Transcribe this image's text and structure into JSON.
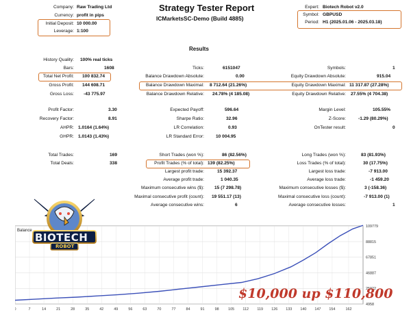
{
  "header": {
    "title": "Strategy Tester Report",
    "server": "ICMarketsSC-Demo (Build 4885)",
    "company_label": "Company:",
    "company": "Raw Trading Ltd",
    "currency_label": "Currency:",
    "currency": "profit in pips",
    "deposit_label": "Initial Deposit:",
    "deposit": "10 000.00",
    "leverage_label": "Leverage:",
    "leverage": "1:100",
    "expert_label": "Expert:",
    "expert": "Biotech Robot v2.0",
    "symbol_label": "Symbol:",
    "symbol": "GBPUSD",
    "period_label": "Period:",
    "period": "H1 (2025.01.06 - 2025.03.18)"
  },
  "results_title": "Results",
  "stats": {
    "history_quality": {
      "label": "History Quality:",
      "value": "100% real ticks"
    },
    "bars": {
      "label": "Bars:",
      "value": "1608"
    },
    "ticks": {
      "label": "Ticks:",
      "value": "6151047"
    },
    "symbols": {
      "label": "Symbols:",
      "value": "1"
    },
    "total_net_profit": {
      "label": "Total Net Profit:",
      "value": "100 832.74"
    },
    "bal_dd_abs": {
      "label": "Balance Drawdown Absolute:",
      "value": "0.00"
    },
    "eq_dd_abs": {
      "label": "Equity Drawdown Absolute:",
      "value": "915.04"
    },
    "gross_profit": {
      "label": "Gross Profit:",
      "value": "144 608.71"
    },
    "bal_dd_max": {
      "label": "Balance Drawdown Maximal:",
      "value": "8 712.64 (21.26%)"
    },
    "eq_dd_max": {
      "label": "Equity Drawdown Maximal:",
      "value": "11 317.87 (27.28%)"
    },
    "gross_loss": {
      "label": "Gross Loss:",
      "value": "-43 775.97"
    },
    "bal_dd_rel": {
      "label": "Balance Drawdown Relative:",
      "value": "24.78% (4 185.08)"
    },
    "eq_dd_rel": {
      "label": "Equity Drawdown Relative:",
      "value": "27.55% (4 704.38)"
    },
    "profit_factor": {
      "label": "Profit Factor:",
      "value": "3.30"
    },
    "expected_payoff": {
      "label": "Expected Payoff:",
      "value": "596.64"
    },
    "margin_level": {
      "label": "Margin Level:",
      "value": "105.55%"
    },
    "recovery_factor": {
      "label": "Recovery Factor:",
      "value": "8.91"
    },
    "sharpe": {
      "label": "Sharpe Ratio:",
      "value": "32.96"
    },
    "zscore": {
      "label": "Z-Score:",
      "value": "-1.29 (80.29%)"
    },
    "ahpr": {
      "label": "AHPR:",
      "value": "1.0164 (1.64%)"
    },
    "lr_corr": {
      "label": "LR Correlation:",
      "value": "0.93"
    },
    "ontester": {
      "label": "OnTester result:",
      "value": "0"
    },
    "ghpr": {
      "label": "GHPR:",
      "value": "1.0143 (1.43%)"
    },
    "lr_std": {
      "label": "LR Standard Error:",
      "value": "10 004.95"
    },
    "total_trades": {
      "label": "Total Trades:",
      "value": "169"
    },
    "short_trades": {
      "label": "Short Trades (won %):",
      "value": "86 (82.56%)"
    },
    "long_trades": {
      "label": "Long Trades (won %):",
      "value": "83 (81.93%)"
    },
    "total_deals": {
      "label": "Total Deals:",
      "value": "338"
    },
    "profit_trades": {
      "label": "Profit Trades (% of total):",
      "value": "139 (82.25%)"
    },
    "loss_trades": {
      "label": "Loss Trades (% of total):",
      "value": "30 (17.75%)"
    },
    "largest_profit": {
      "label": "Largest profit trade:",
      "value": "15 392.37"
    },
    "largest_loss": {
      "label": "Largest loss trade:",
      "value": "-7 913.00"
    },
    "avg_profit": {
      "label": "Average profit trade:",
      "value": "1 040.35"
    },
    "avg_loss": {
      "label": "Average loss trade:",
      "value": "-1 459.20"
    },
    "max_cons_wins": {
      "label": "Maximum consecutive wins ($):",
      "value": "15 (7 298.78)"
    },
    "max_cons_losses": {
      "label": "Maximum consecutive losses ($):",
      "value": "3 (-158.36)"
    },
    "maximal_cons_profit": {
      "label": "Maximal consecutive profit (count):",
      "value": "19 551.17 (13)"
    },
    "maximal_cons_loss": {
      "label": "Maximal consecutive loss (count):",
      "value": "-7 913.00 (1)"
    },
    "avg_cons_wins": {
      "label": "Average consecutive wins:",
      "value": "6"
    },
    "avg_cons_losses": {
      "label": "Average consecutive losses:",
      "value": "1"
    }
  },
  "logo": {
    "line1": "BIOTECH",
    "line2": "ROBOT"
  },
  "watermark": "$10,000 up $110,800",
  "accent_color": "#d4742c",
  "chart_data": {
    "type": "line",
    "title": "Balance",
    "ylim": [
      4958,
      110000
    ],
    "y_ticks": [
      4958,
      25922,
      46887,
      67851,
      88815,
      109779
    ],
    "x_ticks": [
      0,
      7,
      14,
      21,
      28,
      35,
      42,
      49,
      56,
      63,
      70,
      77,
      84,
      91,
      98,
      105,
      112,
      119,
      126,
      133,
      140,
      147,
      154,
      162
    ],
    "xlim": [
      0,
      169
    ],
    "series": [
      {
        "color": "#3a4fb8",
        "x": [
          0,
          10,
          20,
          30,
          40,
          50,
          60,
          70,
          80,
          90,
          100,
          110,
          118,
          126,
          134,
          140,
          146,
          152,
          158,
          164,
          169
        ],
        "y": [
          10000,
          11500,
          13000,
          14200,
          15800,
          17500,
          19500,
          22000,
          25000,
          28000,
          31000,
          34000,
          39000,
          46000,
          55000,
          64000,
          74000,
          86000,
          97000,
          106000,
          110800
        ]
      }
    ]
  }
}
